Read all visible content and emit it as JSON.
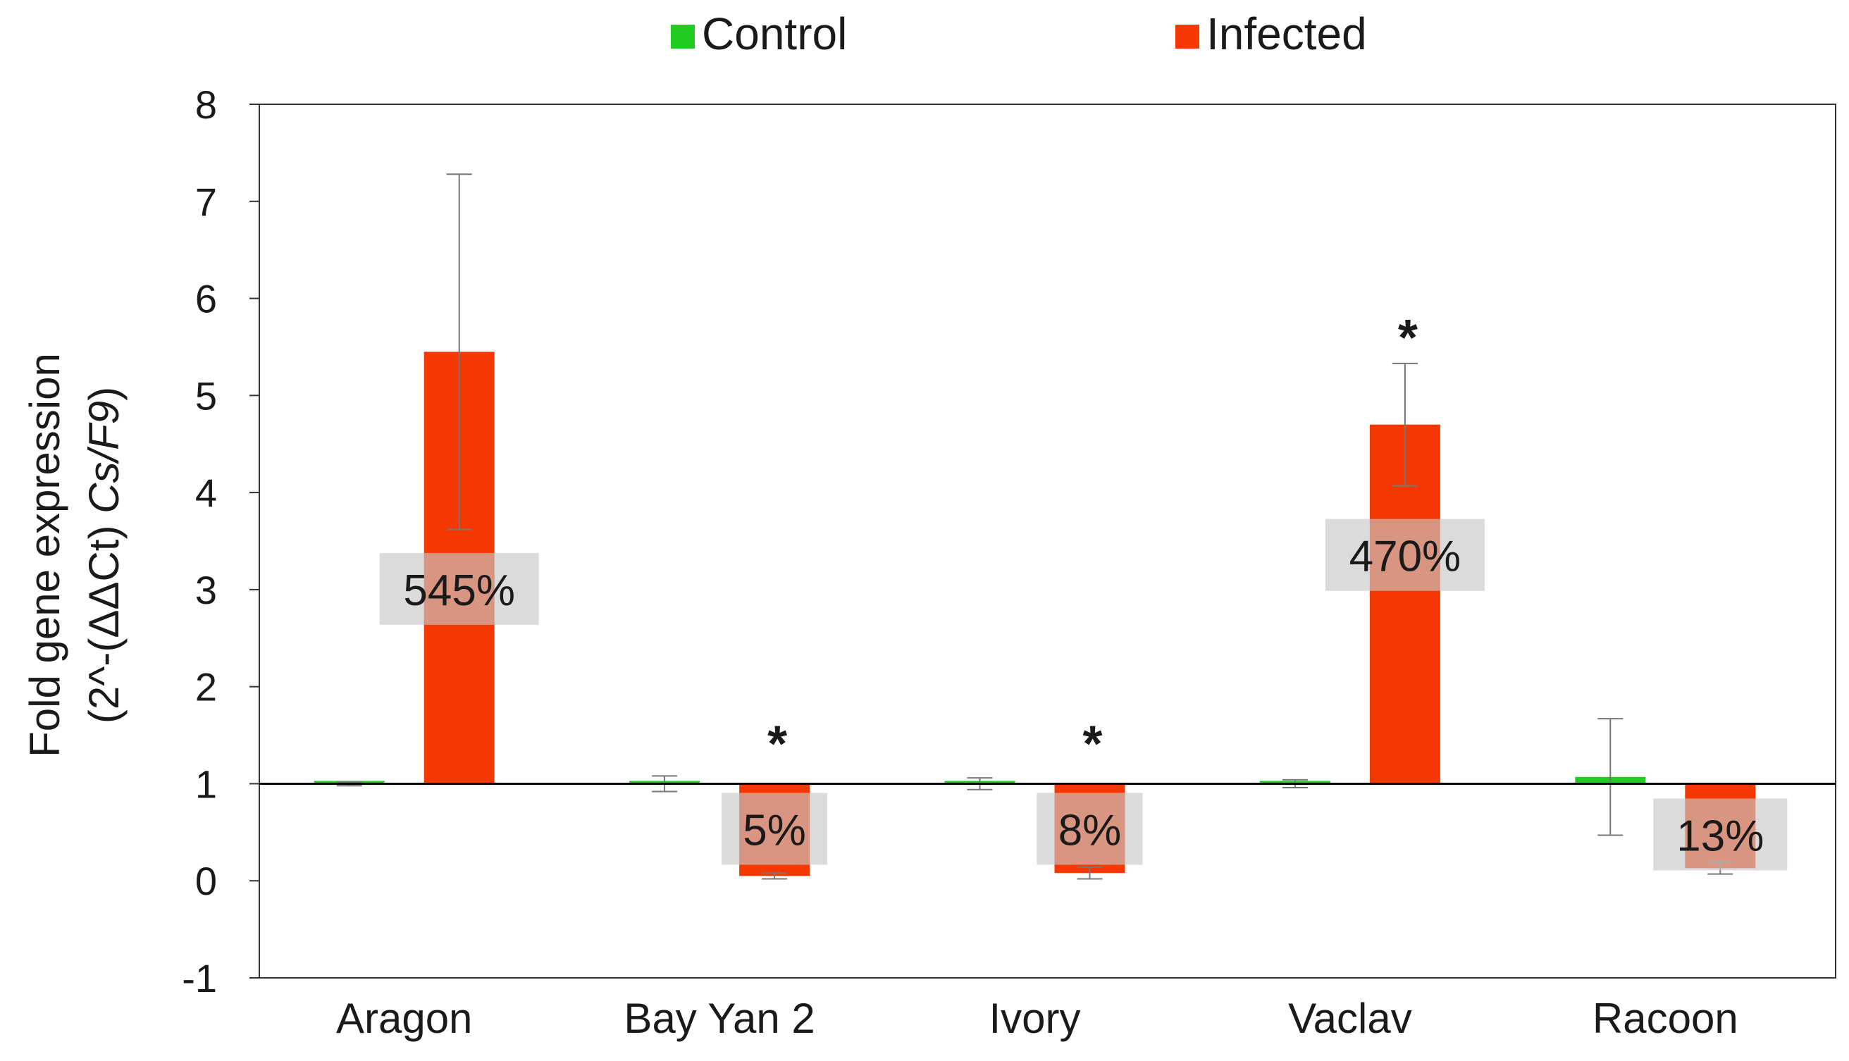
{
  "chart_data": {
    "type": "bar",
    "title": "",
    "xlabel": "",
    "ylabel_line1": "Fold gene expression",
    "ylabel_line2_prefix": "(2^-(ΔΔCt) ",
    "ylabel_line2_italic": "Cs/F9",
    "ylabel_line2_suffix": ")",
    "ylim": [
      -1,
      8
    ],
    "yticks": [
      "-1",
      "0",
      "1",
      "2",
      "3",
      "4",
      "5",
      "6",
      "7",
      "8"
    ],
    "baseline": 1,
    "legend_position": "top-center",
    "categories": [
      "Aragon",
      "Bay Yan 2",
      "Ivory",
      "Vaclav",
      "Racoon"
    ],
    "series": [
      {
        "name": "Control",
        "color": "#22cc22",
        "values": [
          1.0,
          1.0,
          1.0,
          1.0,
          1.07
        ],
        "errors": [
          0.02,
          0.08,
          0.06,
          0.04,
          0.6
        ]
      },
      {
        "name": "Infected",
        "color": "#f53800",
        "values": [
          5.45,
          0.05,
          0.08,
          4.7,
          0.13
        ],
        "errors": [
          1.83,
          0.03,
          0.06,
          0.63,
          0.06
        ]
      }
    ],
    "percent_labels": [
      "545%",
      "5%",
      "8%",
      "470%",
      "13%"
    ],
    "significance": [
      "",
      "*",
      "*",
      "*",
      ""
    ]
  }
}
